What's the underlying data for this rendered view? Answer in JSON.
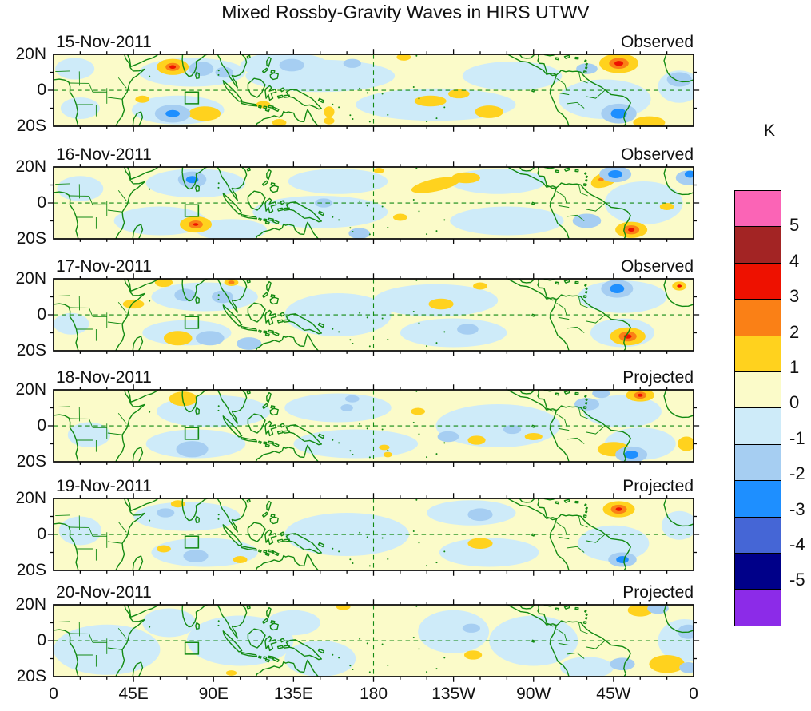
{
  "title": "Mixed Rossby-Gravity Waves in HIRS UTWV",
  "colorbar": {
    "unit_label": "K",
    "cells_top_to_bottom": [
      "#FB64B6",
      "#A32424",
      "#EE1100",
      "#FA8016",
      "#FFD21E",
      "#FBFBC9",
      "#CEEBF9",
      "#A6CEF2",
      "#1E8FFF",
      "#4566D6",
      "#000089",
      "#8C2BE8"
    ],
    "boundary_labels": [
      "5",
      "4",
      "3",
      "2",
      "1",
      "0",
      "-1",
      "-2",
      "-3",
      "-4",
      "-5"
    ]
  },
  "axes": {
    "x_tick_labels": [
      "0",
      "45E",
      "90E",
      "135E",
      "180",
      "135W",
      "90W",
      "45W",
      "0"
    ],
    "x_tick_lons": [
      0,
      45,
      90,
      135,
      180,
      225,
      270,
      315,
      360
    ],
    "y_tick_labels": [
      "20N",
      "0",
      "20S"
    ],
    "lat_range": [
      -20,
      20
    ],
    "lon_range": [
      0,
      360
    ]
  },
  "chart_data": {
    "type": "heatmap",
    "description": "Six daily longitude-latitude (0-360E, 20S-20N) filled-contour maps of mixed Rossby-gravity wave anomalies in HIRS upper-tropospheric water vapor (brightness temperature, K). Green coastlines, dashed equator and dateline, green index box in the central Indian Ocean.",
    "unit": "K",
    "background_band_level": 0,
    "level_colors": {
      "-3": "#1E8FFF",
      "-2": "#A6CEF2",
      "-1": "#CEEBF9",
      "0": "#FBFBC9",
      "1": "#FFD21E",
      "2": "#FA8016",
      "3": "#EE1100"
    },
    "feature_format": [
      "lon_deg_east",
      "lat_deg_north",
      "radius_lon_deg",
      "radius_lat_deg",
      "band_level",
      "rotation_deg_optional"
    ],
    "region_box": {
      "lon_min": 74,
      "lon_max": 81.5,
      "lat_min": -7.5,
      "lat_max": -1
    },
    "grid": {
      "equator_dashed": true,
      "dateline_dashed": true
    },
    "panels": [
      {
        "date": "15-Nov-2011",
        "source": "Observed",
        "features": [
          [
            78,
            10,
            30,
            8,
            -1
          ],
          [
            150,
            8,
            42,
            9,
            -1
          ],
          [
            130,
            14,
            25,
            7,
            -1
          ],
          [
            70,
            -11,
            26,
            8,
            -1
          ],
          [
            215,
            -8,
            45,
            9,
            -1
          ],
          [
            258,
            8,
            28,
            8,
            -1
          ],
          [
            310,
            -5,
            26,
            11,
            -1
          ],
          [
            352,
            2,
            12,
            9,
            -1
          ],
          [
            12,
            12,
            11,
            6,
            -1
          ],
          [
            15,
            -10,
            11,
            6,
            -1
          ],
          [
            83,
            12,
            7,
            4,
            -2
          ],
          [
            96,
            10,
            5,
            3,
            -2
          ],
          [
            67,
            -13,
            10,
            5,
            -2
          ],
          [
            134,
            14,
            7,
            3.5,
            -2
          ],
          [
            168,
            15,
            5,
            2.5,
            -2
          ],
          [
            300,
            12,
            6,
            3,
            -2
          ],
          [
            318,
            -13,
            10,
            5.5,
            -2
          ],
          [
            352,
            6,
            7,
            4,
            -2
          ],
          [
            67,
            -13,
            4,
            2,
            -3
          ],
          [
            318,
            -13,
            4.5,
            2.8,
            -3
          ],
          [
            67,
            13,
            9,
            4.5,
            1
          ],
          [
            85,
            -13,
            9,
            4,
            1
          ],
          [
            50,
            -5,
            4,
            2,
            1
          ],
          [
            118,
            -8,
            4,
            2,
            1
          ],
          [
            127,
            -18,
            4,
            2,
            1
          ],
          [
            155,
            -12,
            3,
            3,
            1
          ],
          [
            155,
            -17,
            3,
            2,
            1
          ],
          [
            212,
            -6,
            9,
            3,
            1
          ],
          [
            228,
            -2,
            6,
            2.5,
            1
          ],
          [
            245,
            -12,
            8,
            3.5,
            1
          ],
          [
            197,
            18.5,
            4,
            2,
            1
          ],
          [
            318,
            15,
            11,
            5.5,
            1
          ],
          [
            335,
            -18,
            9,
            3.5,
            1
          ],
          [
            67,
            13,
            4,
            2.2,
            2
          ],
          [
            318,
            15,
            5.5,
            3,
            2
          ],
          [
            67,
            13,
            1.8,
            1,
            3
          ],
          [
            318,
            15,
            2.5,
            1.4,
            3
          ]
        ]
      },
      {
        "date": "16-Nov-2011",
        "source": "Observed",
        "features": [
          [
            80,
            11,
            28,
            8,
            -1
          ],
          [
            60,
            -10,
            26,
            8,
            -1
          ],
          [
            160,
            12,
            28,
            7,
            -1
          ],
          [
            150,
            -5,
            38,
            9,
            -1
          ],
          [
            250,
            12,
            27,
            7,
            -1
          ],
          [
            255,
            -10,
            32,
            8,
            -1
          ],
          [
            332,
            0,
            22,
            12,
            -1
          ],
          [
            15,
            8,
            13,
            7,
            -1
          ],
          [
            100,
            -15,
            20,
            6,
            -1
          ],
          [
            78,
            13,
            8,
            4.5,
            -2
          ],
          [
            300,
            -10,
            8,
            4,
            -2
          ],
          [
            316,
            16,
            9,
            4.5,
            -2
          ],
          [
            357,
            14,
            7,
            4,
            -2
          ],
          [
            172,
            -17,
            6,
            3,
            -2
          ],
          [
            152,
            0,
            5,
            2.5,
            -2
          ],
          [
            78,
            13,
            3.5,
            2,
            -3
          ],
          [
            316,
            16,
            4,
            2.2,
            -3
          ],
          [
            358,
            16,
            3,
            2,
            -3
          ],
          [
            80,
            -12,
            9,
            4.5,
            1
          ],
          [
            215,
            10,
            14,
            3.5,
            1,
            -12
          ],
          [
            232,
            14,
            8,
            3,
            1
          ],
          [
            195,
            -8,
            4,
            2,
            1
          ],
          [
            183,
            18,
            3,
            1.5,
            1
          ],
          [
            310,
            13,
            8,
            4,
            1,
            -20
          ],
          [
            325,
            -15,
            9,
            4.5,
            1
          ],
          [
            345,
            -2,
            4,
            2,
            1
          ],
          [
            80,
            -12,
            4,
            2.2,
            2
          ],
          [
            325,
            -15,
            4.5,
            2.5,
            2
          ],
          [
            308,
            13,
            1.5,
            1,
            2
          ],
          [
            80,
            -12,
            1.5,
            0.8,
            3
          ],
          [
            325,
            -15,
            1.8,
            1,
            3
          ]
        ]
      },
      {
        "date": "17-Nov-2011",
        "source": "Observed",
        "features": [
          [
            85,
            10,
            30,
            8,
            -1
          ],
          [
            75,
            -10,
            25,
            7,
            -1
          ],
          [
            160,
            0,
            30,
            12,
            -1
          ],
          [
            215,
            8,
            35,
            9,
            -1
          ],
          [
            225,
            -10,
            30,
            8,
            -1
          ],
          [
            320,
            10,
            25,
            9,
            -1
          ],
          [
            320,
            -10,
            18,
            8,
            -1
          ],
          [
            10,
            -5,
            10,
            6,
            -1
          ],
          [
            74,
            11,
            6,
            3.5,
            -2
          ],
          [
            95,
            10,
            6,
            3.5,
            -2
          ],
          [
            88,
            -13,
            8,
            4,
            -2
          ],
          [
            110,
            -16,
            7,
            3.5,
            -2
          ],
          [
            233,
            -8,
            6,
            3,
            -2
          ],
          [
            317,
            14.5,
            9,
            5,
            -2
          ],
          [
            317,
            14.5,
            4,
            2.5,
            -3
          ],
          [
            62,
            18,
            5,
            2.5,
            1
          ],
          [
            100,
            18,
            4,
            2,
            1
          ],
          [
            70,
            -13,
            8,
            4,
            1
          ],
          [
            45,
            6,
            6,
            2.5,
            1
          ],
          [
            218,
            6,
            7,
            3,
            1
          ],
          [
            240,
            16,
            4,
            2,
            1
          ],
          [
            323,
            -12,
            10,
            5,
            1
          ],
          [
            352,
            16,
            4,
            2.5,
            1
          ],
          [
            100,
            18,
            1.8,
            1,
            2
          ],
          [
            323,
            -12,
            5,
            2.8,
            2
          ],
          [
            323,
            -12,
            2.2,
            1.2,
            3
          ],
          [
            352,
            16,
            1.3,
            0.8,
            3
          ]
        ]
      },
      {
        "date": "18-Nov-2011",
        "source": "Projected",
        "features": [
          [
            90,
            8,
            32,
            9,
            -1
          ],
          [
            80,
            -10,
            28,
            8,
            -1
          ],
          [
            160,
            10,
            30,
            8,
            -1
          ],
          [
            170,
            -10,
            35,
            8,
            -1
          ],
          [
            250,
            0,
            35,
            12,
            -1
          ],
          [
            320,
            8,
            22,
            9,
            -1
          ],
          [
            330,
            -10,
            20,
            9,
            -1
          ],
          [
            20,
            -5,
            12,
            7,
            -1
          ],
          [
            78,
            -13,
            9,
            4.5,
            -2
          ],
          [
            168,
            15,
            4,
            2,
            -2
          ],
          [
            165,
            10,
            3.5,
            2,
            -2
          ],
          [
            222,
            -6,
            6,
            3,
            -2
          ],
          [
            258,
            -2,
            5,
            2.5,
            -2
          ],
          [
            300,
            12,
            7,
            3.5,
            -2
          ],
          [
            325,
            -16,
            9,
            4.5,
            -2
          ],
          [
            308,
            18,
            5,
            2.5,
            -2
          ],
          [
            325,
            -16,
            4,
            2.2,
            -3
          ],
          [
            73,
            15,
            8,
            4,
            1
          ],
          [
            205,
            8,
            4,
            2,
            1
          ],
          [
            238,
            -8,
            5,
            2.5,
            1
          ],
          [
            186,
            -12,
            3,
            1.5,
            1
          ],
          [
            188,
            -16,
            2.5,
            1.5,
            1
          ],
          [
            270,
            -6,
            5,
            2,
            1
          ],
          [
            330,
            17,
            8,
            3.5,
            1
          ],
          [
            315,
            -13,
            9,
            4,
            1
          ],
          [
            356,
            -10,
            5,
            4,
            1
          ],
          [
            330,
            17,
            3.5,
            2,
            2
          ],
          [
            330,
            17,
            1.5,
            0.9,
            3
          ]
        ]
      },
      {
        "date": "19-Nov-2011",
        "source": "Projected",
        "features": [
          [
            75,
            10,
            30,
            8,
            -1
          ],
          [
            85,
            -10,
            30,
            8,
            -1
          ],
          [
            165,
            0,
            35,
            12,
            -1
          ],
          [
            235,
            12,
            25,
            7,
            -1
          ],
          [
            245,
            -10,
            28,
            8,
            -1
          ],
          [
            315,
            -5,
            20,
            10,
            -1
          ],
          [
            15,
            2,
            12,
            8,
            -1
          ],
          [
            352,
            5,
            10,
            8,
            -1
          ],
          [
            63,
            12,
            5,
            2.5,
            -2
          ],
          [
            80,
            -12,
            7,
            3.5,
            -2
          ],
          [
            240,
            11,
            7,
            3.5,
            -2
          ],
          [
            320,
            -14,
            8,
            4,
            -2
          ],
          [
            320,
            -14,
            3.5,
            2,
            -3
          ],
          [
            70,
            17,
            4,
            2,
            1
          ],
          [
            62,
            -8,
            4,
            2,
            1
          ],
          [
            105,
            -14,
            4,
            2,
            1
          ],
          [
            240,
            -5,
            7,
            3,
            1
          ],
          [
            318,
            14,
            9,
            4.5,
            1
          ],
          [
            318,
            14,
            4.5,
            2.5,
            2
          ],
          [
            318,
            14,
            1.8,
            1,
            3
          ]
        ]
      },
      {
        "date": "20-Nov-2011",
        "source": "Projected",
        "features": [
          [
            30,
            -5,
            30,
            14,
            -1
          ],
          [
            105,
            0,
            30,
            14,
            -1
          ],
          [
            150,
            -10,
            20,
            10,
            -1
          ],
          [
            225,
            5,
            20,
            12,
            -1
          ],
          [
            270,
            0,
            25,
            14,
            -1
          ],
          [
            355,
            0,
            15,
            12,
            -1
          ],
          [
            300,
            -15,
            15,
            6,
            -1
          ],
          [
            65,
            10,
            15,
            8,
            -1
          ],
          [
            135,
            10,
            15,
            7,
            -1
          ],
          [
            235,
            7,
            5,
            2.5,
            -2
          ],
          [
            340,
            18,
            6,
            3,
            -2
          ],
          [
            320,
            -13,
            7,
            3.5,
            -2
          ],
          [
            357,
            -15,
            5,
            3,
            -2
          ],
          [
            357,
            5,
            6,
            4,
            -2
          ],
          [
            330,
            17,
            7,
            3.5,
            1
          ],
          [
            345,
            -13,
            10,
            5,
            1
          ],
          [
            236,
            -8,
            5,
            2.5,
            1
          ],
          [
            163,
            19,
            4,
            2,
            1
          ],
          [
            100,
            -18,
            3,
            1.5,
            1
          ]
        ]
      }
    ]
  }
}
